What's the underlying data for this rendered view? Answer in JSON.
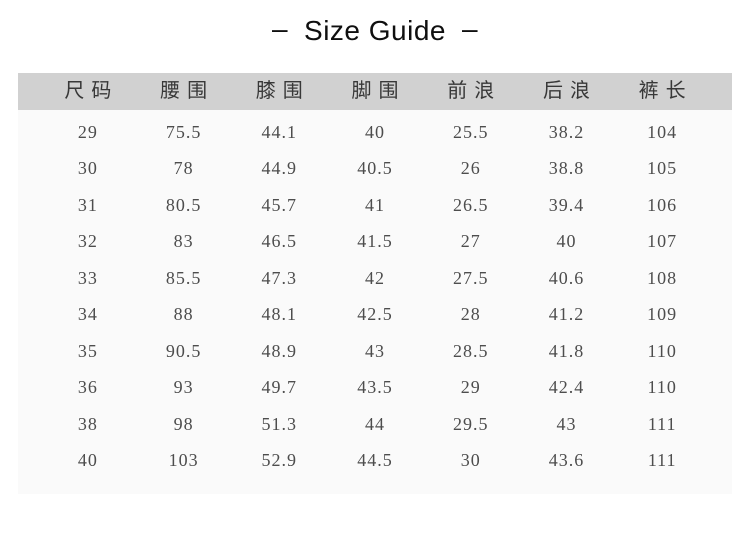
{
  "title": {
    "dash": "–",
    "text": "Size Guide"
  },
  "table": {
    "headers": [
      "尺码",
      "腰围",
      "膝围",
      "脚围",
      "前浪",
      "后浪",
      "裤长"
    ],
    "rows": [
      [
        "29",
        "75.5",
        "44.1",
        "40",
        "25.5",
        "38.2",
        "104"
      ],
      [
        "30",
        "78",
        "44.9",
        "40.5",
        "26",
        "38.8",
        "105"
      ],
      [
        "31",
        "80.5",
        "45.7",
        "41",
        "26.5",
        "39.4",
        "106"
      ],
      [
        "32",
        "83",
        "46.5",
        "41.5",
        "27",
        "40",
        "107"
      ],
      [
        "33",
        "85.5",
        "47.3",
        "42",
        "27.5",
        "40.6",
        "108"
      ],
      [
        "34",
        "88",
        "48.1",
        "42.5",
        "28",
        "41.2",
        "109"
      ],
      [
        "35",
        "90.5",
        "48.9",
        "43",
        "28.5",
        "41.8",
        "110"
      ],
      [
        "36",
        "93",
        "49.7",
        "43.5",
        "29",
        "42.4",
        "110"
      ],
      [
        "38",
        "98",
        "51.3",
        "44",
        "29.5",
        "43",
        "111"
      ],
      [
        "40",
        "103",
        "52.9",
        "44.5",
        "30",
        "43.6",
        "111"
      ]
    ]
  },
  "colors": {
    "header_bg": "#d1d1d1",
    "body_bg": "#fafafa",
    "title_text": "#0f0f0f",
    "header_text": "#383838",
    "cell_text": "#4d4d4d"
  }
}
